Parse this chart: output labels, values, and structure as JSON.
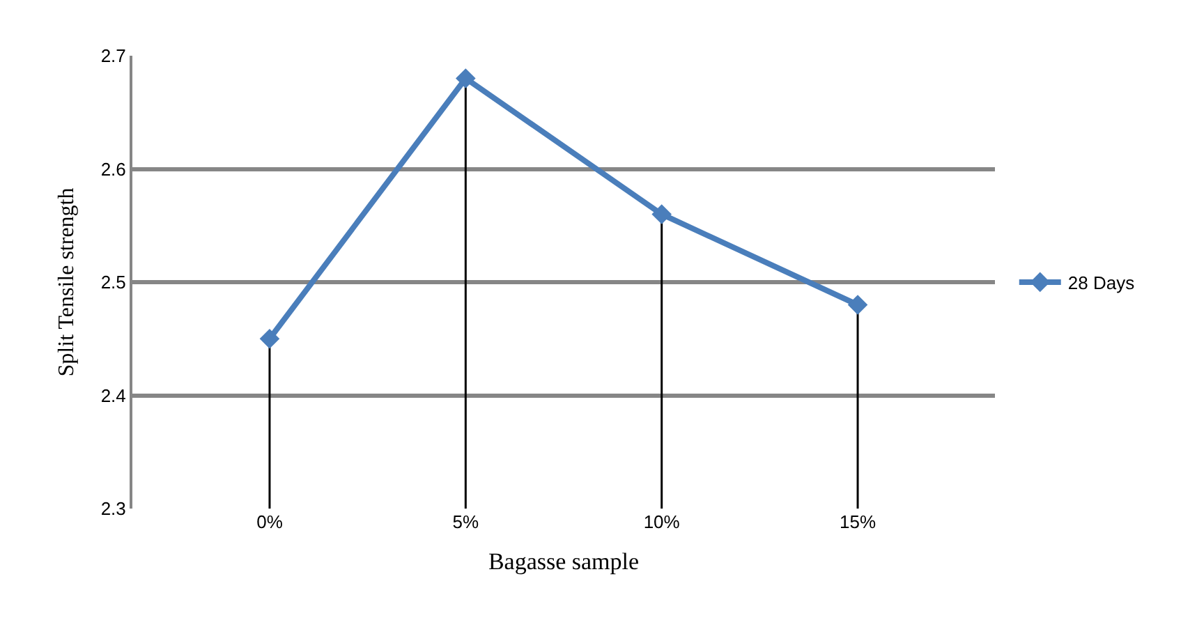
{
  "chart_data": {
    "type": "line",
    "xlabel": "Bagasse sample",
    "ylabel": "Split Tensile strength",
    "categories": [
      "0%",
      "5%",
      "10%",
      "15%"
    ],
    "series": [
      {
        "name": "28 Days",
        "color": "#4a7ebb",
        "values": [
          2.45,
          2.68,
          2.56,
          2.48
        ],
        "errors": [
          [
            2.3,
            2.45
          ],
          [
            2.3,
            2.68
          ],
          [
            2.3,
            2.56
          ],
          [
            2.3,
            2.48
          ]
        ]
      }
    ],
    "ylim": [
      2.3,
      2.7
    ],
    "yticks": [
      2.3,
      2.4,
      2.5,
      2.6,
      2.7
    ],
    "grid": "y",
    "legend": "right",
    "marker": "diamond",
    "line_style": "solid"
  }
}
